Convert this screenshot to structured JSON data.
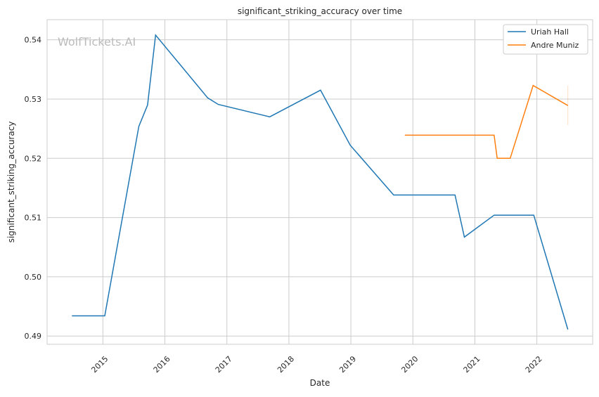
{
  "chart_data": {
    "type": "line",
    "title": "significant_striking_accuracy over time",
    "xlabel": "Date",
    "ylabel": "significant_striking_accuracy",
    "watermark": "WolfTickets.AI",
    "xlim": [
      2014.1,
      2022.9
    ],
    "ylim": [
      0.4886,
      0.5434
    ],
    "x_ticks": [
      2015,
      2016,
      2017,
      2018,
      2019,
      2020,
      2021,
      2022
    ],
    "x_tick_labels": [
      "2015",
      "2016",
      "2017",
      "2018",
      "2019",
      "2020",
      "2021",
      "2022"
    ],
    "y_ticks": [
      0.49,
      0.5,
      0.51,
      0.52,
      0.53,
      0.54
    ],
    "y_tick_labels": [
      "0.49",
      "0.50",
      "0.51",
      "0.52",
      "0.53",
      "0.54"
    ],
    "grid": true,
    "legend_placement": "top-right",
    "series": [
      {
        "name": "Uriah Hall",
        "color": "#1f77b4",
        "x": [
          2014.5,
          2015.03,
          2015.58,
          2015.72,
          2015.85,
          2016.69,
          2016.86,
          2017.69,
          2018.51,
          2018.99,
          2019.69,
          2020.68,
          2020.83,
          2021.31,
          2021.95,
          2022.5
        ],
        "y": [
          0.4934,
          0.4934,
          0.5254,
          0.529,
          0.5408,
          0.5302,
          0.5291,
          0.527,
          0.5315,
          0.5222,
          0.5138,
          0.5138,
          0.5067,
          0.5104,
          0.5104,
          0.4911
        ]
      },
      {
        "name": "Andre Muniz",
        "color": "#ff7f0e",
        "x": [
          2019.87,
          2021.31,
          2021.36,
          2021.57,
          2021.94,
          2022.5
        ],
        "y": [
          0.5239,
          0.5239,
          0.52,
          0.52,
          0.5323,
          0.5289
        ],
        "band": {
          "x": 2022.5,
          "y_low": 0.5256,
          "y_high": 0.5323
        }
      }
    ]
  }
}
